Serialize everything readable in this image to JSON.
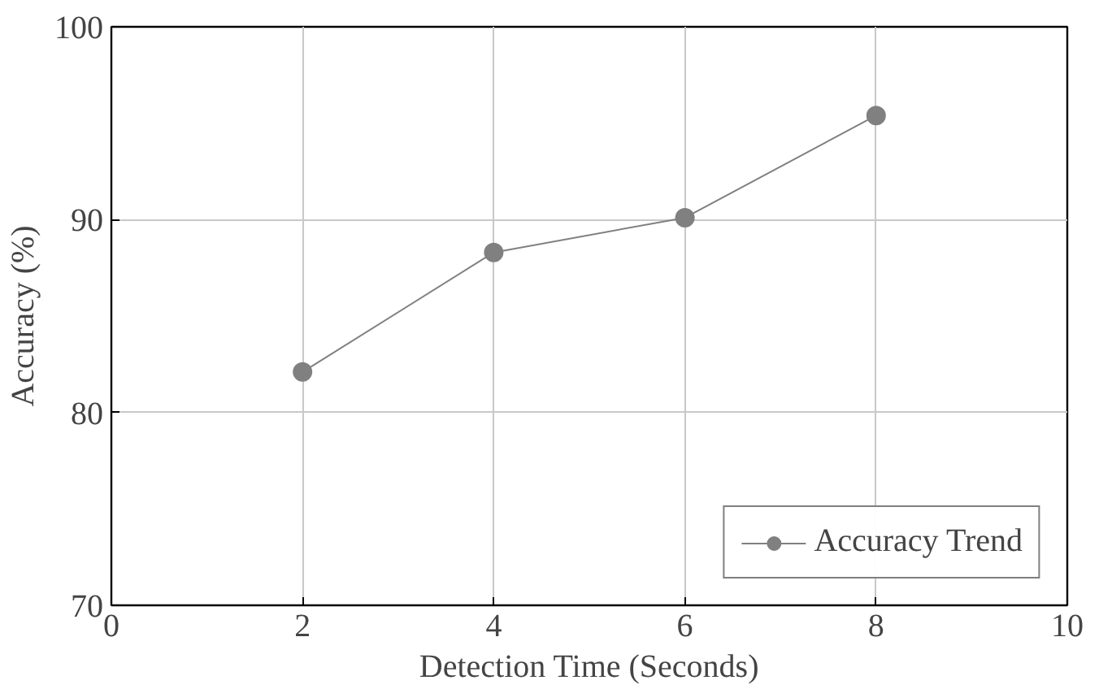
{
  "chart_data": {
    "type": "line",
    "xlabel": "Detection Time (Seconds)",
    "ylabel": "Accuracy (%)",
    "x": [
      2,
      4,
      6,
      8
    ],
    "series": [
      {
        "name": "Accuracy Trend",
        "color": "#808080",
        "values": [
          82.1,
          88.3,
          90.1,
          95.4
        ]
      }
    ],
    "xlim": [
      0,
      10
    ],
    "ylim": [
      70,
      100
    ],
    "xticks": [
      0,
      2,
      4,
      6,
      8,
      10
    ],
    "yticks": [
      70,
      80,
      90,
      100
    ],
    "grid": true,
    "legend": "bottom right",
    "marker": "circle",
    "line_style": "solid"
  }
}
